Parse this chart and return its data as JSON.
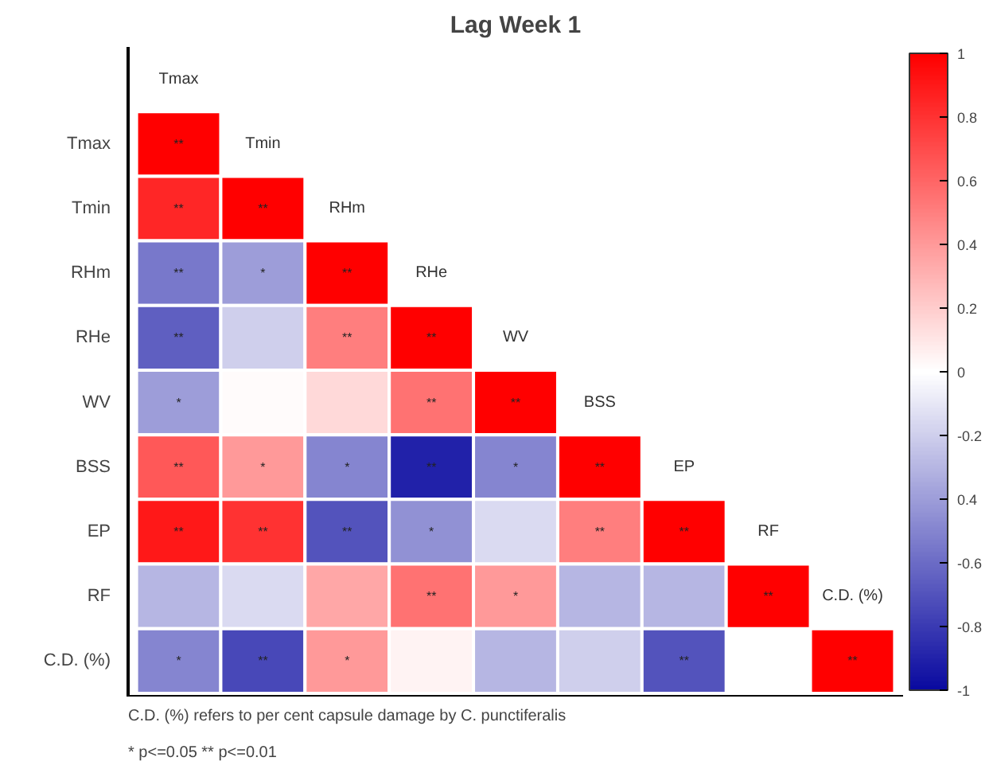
{
  "chart_data": {
    "type": "heatmap",
    "title": "Lag Week 1",
    "categories": [
      "Tmax",
      "Tmin",
      "RHm",
      "RHe",
      "WV",
      "BSS",
      "EP",
      "RF",
      "C.D. (%)"
    ],
    "y_categories": [
      "Tmax",
      "Tmin",
      "RHm",
      "RHe",
      "WV",
      "BSS",
      "EP",
      "RF",
      "C.D. (%)"
    ],
    "cells": [
      [
        1,
        null,
        null,
        null,
        null,
        null,
        null,
        null,
        null
      ],
      [
        0.85,
        1,
        null,
        null,
        null,
        null,
        null,
        null,
        null
      ],
      [
        -0.55,
        -0.4,
        1,
        null,
        null,
        null,
        null,
        null,
        null
      ],
      [
        -0.65,
        -0.2,
        0.5,
        1,
        null,
        null,
        null,
        null,
        null
      ],
      [
        -0.4,
        0.02,
        0.15,
        0.55,
        1,
        null,
        null,
        null,
        null
      ],
      [
        0.65,
        0.4,
        -0.5,
        -0.9,
        -0.5,
        1,
        null,
        null,
        null
      ],
      [
        0.9,
        0.8,
        -0.7,
        -0.45,
        -0.15,
        0.5,
        1,
        null,
        null
      ],
      [
        -0.3,
        -0.15,
        0.35,
        0.55,
        0.4,
        -0.3,
        -0.3,
        1,
        null
      ],
      [
        -0.5,
        -0.75,
        0.4,
        0.05,
        -0.3,
        -0.2,
        -0.7,
        null,
        1
      ]
    ],
    "cell_labels": [
      [
        "**",
        null,
        null,
        null,
        null,
        null,
        null,
        null,
        null
      ],
      [
        "**",
        "**",
        null,
        null,
        null,
        null,
        null,
        null,
        null
      ],
      [
        "**",
        "*",
        "**",
        null,
        null,
        null,
        null,
        null,
        null
      ],
      [
        "**",
        null,
        "**",
        "**",
        null,
        null,
        null,
        null,
        null
      ],
      [
        "*",
        null,
        null,
        "**",
        "**",
        null,
        null,
        null,
        null
      ],
      [
        "**",
        "*",
        "*",
        "**",
        "*",
        "**",
        null,
        null,
        null
      ],
      [
        "**",
        "**",
        "**",
        "*",
        null,
        "**",
        "**",
        null,
        null
      ],
      [
        null,
        null,
        null,
        "**",
        "*",
        null,
        null,
        "**",
        null
      ],
      [
        "*",
        "**",
        "*",
        null,
        null,
        null,
        "**",
        null,
        "**"
      ]
    ],
    "clim": [
      -1,
      1
    ],
    "cticks": [
      -1,
      -0.8,
      -0.6,
      {
        "value": -0.4,
        "label": "0.4"
      },
      -0.2,
      0,
      0.2,
      0.4,
      0.6,
      0.8,
      1
    ],
    "annotations": [
      "C.D. (%) refers to per cent capsule damage by C. punctiferalis",
      "* p<=0.05  ** p<=0.01"
    ]
  }
}
